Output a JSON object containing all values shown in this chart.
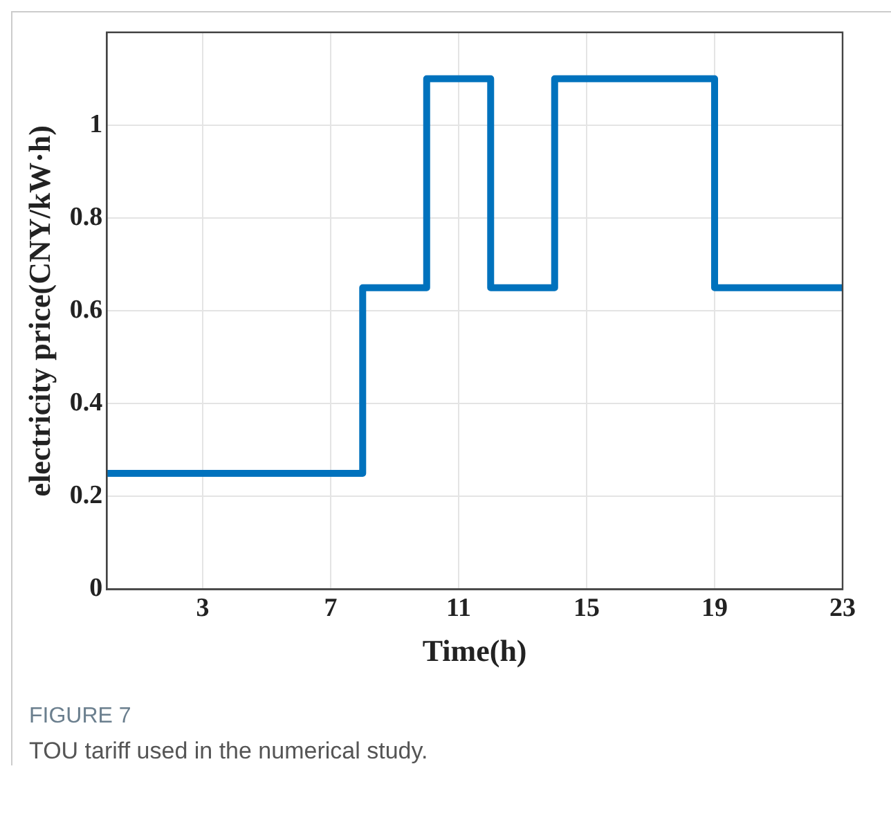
{
  "chart_data": {
    "type": "step",
    "xlabel": "Time(h)",
    "ylabel": "electricity price(CNY/kW·h)",
    "x": [
      0,
      8,
      10,
      12,
      14,
      19,
      23
    ],
    "series": [
      {
        "color": "#0072bd",
        "values": [
          0.25,
          0.65,
          1.1,
          0.65,
          1.1,
          0.65,
          0.65
        ]
      }
    ],
    "xlim": [
      0,
      23
    ],
    "xticks": [
      3,
      7,
      11,
      15,
      19,
      23
    ],
    "ylim": [
      0,
      1.2
    ],
    "yticks": [
      0,
      0.2,
      0.4,
      0.6,
      0.8,
      1
    ],
    "grid": true,
    "legend": false,
    "marker": "none",
    "line_style": "solid",
    "annotations": [
      "FIGURE 7",
      "TOU tariff used in the numerical study."
    ]
  }
}
